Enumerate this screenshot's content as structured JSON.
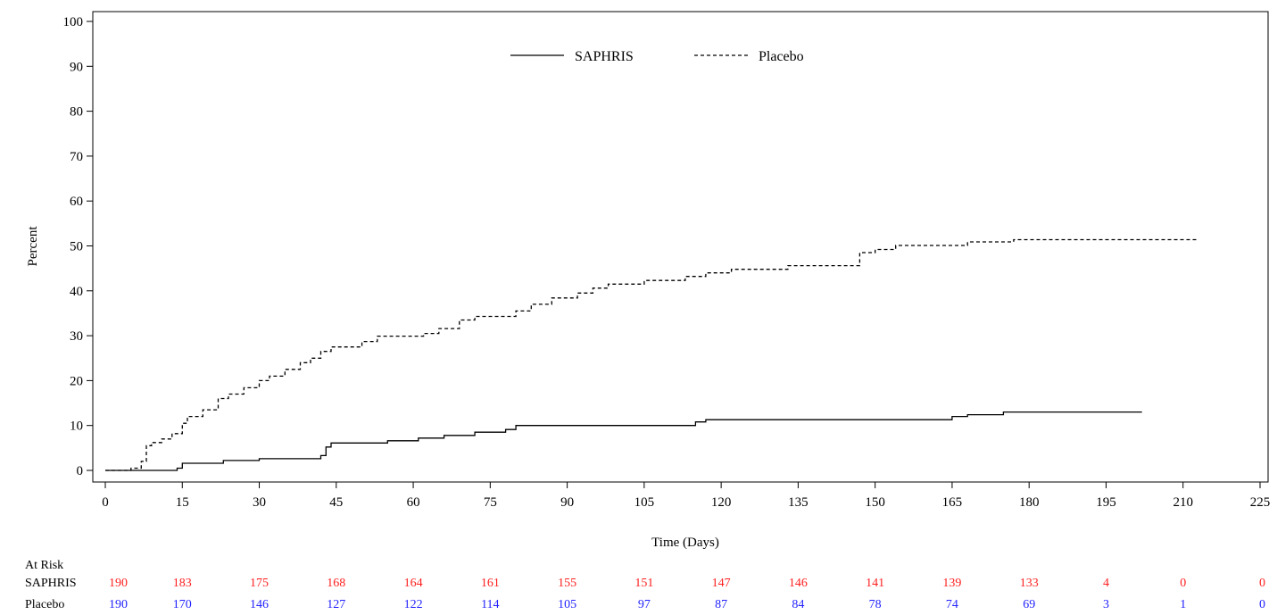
{
  "chart_data": {
    "type": "line",
    "xlabel": "Time (Days)",
    "ylabel": "Percent",
    "xlim": [
      0,
      225
    ],
    "ylim": [
      0,
      100
    ],
    "x_ticks": [
      0,
      15,
      30,
      45,
      60,
      75,
      90,
      105,
      120,
      135,
      150,
      165,
      180,
      195,
      210,
      225
    ],
    "y_ticks": [
      0,
      10,
      20,
      30,
      40,
      50,
      60,
      70,
      80,
      90,
      100
    ],
    "grid": false,
    "legend_position": "top-center",
    "series": [
      {
        "name": "SAPHRIS",
        "style": "solid",
        "color": "#000000",
        "step": true,
        "points": [
          [
            0,
            0
          ],
          [
            14,
            0
          ],
          [
            14,
            0.5
          ],
          [
            15,
            0.5
          ],
          [
            15,
            1.6
          ],
          [
            23,
            1.6
          ],
          [
            23,
            2.2
          ],
          [
            30,
            2.2
          ],
          [
            30,
            2.6
          ],
          [
            42,
            2.6
          ],
          [
            42,
            3.3
          ],
          [
            43,
            3.3
          ],
          [
            43,
            5.2
          ],
          [
            44,
            5.2
          ],
          [
            44,
            6.1
          ],
          [
            55,
            6.1
          ],
          [
            55,
            6.6
          ],
          [
            61,
            6.6
          ],
          [
            61,
            7.2
          ],
          [
            66,
            7.2
          ],
          [
            66,
            7.8
          ],
          [
            72,
            7.8
          ],
          [
            72,
            8.5
          ],
          [
            78,
            8.5
          ],
          [
            78,
            9.1
          ],
          [
            80,
            9.1
          ],
          [
            80,
            10.0
          ],
          [
            115,
            10.0
          ],
          [
            115,
            10.8
          ],
          [
            117,
            10.8
          ],
          [
            117,
            11.3
          ],
          [
            165,
            11.3
          ],
          [
            165,
            12.0
          ],
          [
            168,
            12.0
          ],
          [
            168,
            12.4
          ],
          [
            175,
            12.4
          ],
          [
            175,
            13.0
          ],
          [
            202,
            13.0
          ]
        ]
      },
      {
        "name": "Placebo",
        "style": "dashed",
        "color": "#000000",
        "step": true,
        "points": [
          [
            0,
            0
          ],
          [
            5,
            0
          ],
          [
            5,
            0.5
          ],
          [
            7,
            0.5
          ],
          [
            7,
            2.0
          ],
          [
            8,
            2.0
          ],
          [
            8,
            5.5
          ],
          [
            9,
            5.5
          ],
          [
            9,
            6.2
          ],
          [
            11,
            6.2
          ],
          [
            11,
            7.0
          ],
          [
            13,
            7.0
          ],
          [
            13,
            8.2
          ],
          [
            15,
            8.2
          ],
          [
            15,
            10.5
          ],
          [
            16,
            10.5
          ],
          [
            16,
            12.0
          ],
          [
            19,
            12.0
          ],
          [
            19,
            13.5
          ],
          [
            22,
            13.5
          ],
          [
            22,
            16.0
          ],
          [
            24,
            16.0
          ],
          [
            24,
            17.0
          ],
          [
            27,
            17.0
          ],
          [
            27,
            18.4
          ],
          [
            30,
            18.4
          ],
          [
            30,
            20.0
          ],
          [
            32,
            20.0
          ],
          [
            32,
            21.0
          ],
          [
            35,
            21.0
          ],
          [
            35,
            22.5
          ],
          [
            38,
            22.5
          ],
          [
            38,
            24.0
          ],
          [
            40,
            24.0
          ],
          [
            40,
            25.0
          ],
          [
            42,
            25.0
          ],
          [
            42,
            26.5
          ],
          [
            44,
            26.5
          ],
          [
            44,
            27.5
          ],
          [
            50,
            27.5
          ],
          [
            50,
            28.7
          ],
          [
            53,
            28.7
          ],
          [
            53,
            29.9
          ],
          [
            62,
            29.9
          ],
          [
            62,
            30.5
          ],
          [
            65,
            30.5
          ],
          [
            65,
            31.6
          ],
          [
            69,
            31.6
          ],
          [
            69,
            33.5
          ],
          [
            72,
            33.5
          ],
          [
            72,
            34.3
          ],
          [
            80,
            34.3
          ],
          [
            80,
            35.5
          ],
          [
            83,
            35.5
          ],
          [
            83,
            37.0
          ],
          [
            87,
            37.0
          ],
          [
            87,
            38.4
          ],
          [
            92,
            38.4
          ],
          [
            92,
            39.5
          ],
          [
            95,
            39.5
          ],
          [
            95,
            40.6
          ],
          [
            98,
            40.6
          ],
          [
            98,
            41.5
          ],
          [
            105,
            41.5
          ],
          [
            105,
            42.3
          ],
          [
            113,
            42.3
          ],
          [
            113,
            43.2
          ],
          [
            117,
            43.2
          ],
          [
            117,
            44.0
          ],
          [
            122,
            44.0
          ],
          [
            122,
            44.8
          ],
          [
            133,
            44.8
          ],
          [
            133,
            45.6
          ],
          [
            147,
            45.6
          ],
          [
            147,
            48.5
          ],
          [
            150,
            48.5
          ],
          [
            150,
            49.2
          ],
          [
            154,
            49.2
          ],
          [
            154,
            50.1
          ],
          [
            168,
            50.1
          ],
          [
            168,
            50.9
          ],
          [
            177,
            50.9
          ],
          [
            177,
            51.4
          ],
          [
            213,
            51.4
          ]
        ]
      }
    ],
    "at_risk": {
      "header": "At Risk",
      "rows": [
        {
          "label": "SAPHRIS",
          "color": "#ff1f1f",
          "values": [
            "190",
            "183",
            "175",
            "168",
            "164",
            "161",
            "155",
            "151",
            "147",
            "146",
            "141",
            "139",
            "133",
            "4",
            "0",
            "0"
          ]
        },
        {
          "label": "Placebo",
          "color": "#2323ff",
          "values": [
            "190",
            "170",
            "146",
            "127",
            "122",
            "114",
            "105",
            "97",
            "87",
            "84",
            "78",
            "74",
            "69",
            "3",
            "1",
            "0"
          ]
        }
      ]
    }
  }
}
